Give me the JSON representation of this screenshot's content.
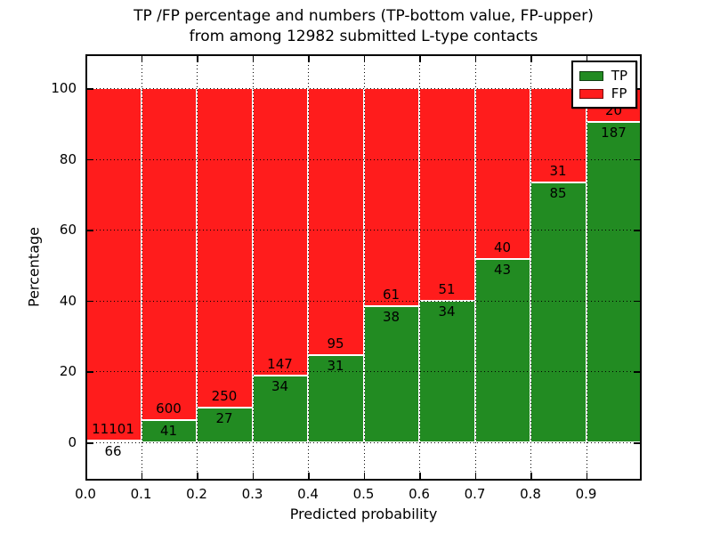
{
  "title": {
    "line1": "TP /FP percentage and numbers (TP-bottom value, FP-upper)",
    "line2": "from among 12982 submitted L-type contacts"
  },
  "axes": {
    "xlabel": "Predicted probability",
    "ylabel": "Percentage",
    "xtick_labels": [
      "0.0",
      "0.1",
      "0.2",
      "0.3",
      "0.4",
      "0.5",
      "0.6",
      "0.7",
      "0.8",
      "0.9"
    ],
    "ytick_values": [
      0,
      20,
      40,
      60,
      80,
      100
    ],
    "xlim": [
      0.0,
      1.0
    ],
    "ylim": [
      -11,
      110
    ],
    "grid_style": "dotted"
  },
  "legend": {
    "position": "upper-right",
    "items": [
      {
        "label": "TP",
        "color": "#228b22"
      },
      {
        "label": "FP",
        "color": "#ff1c1c"
      }
    ]
  },
  "chart_data": {
    "type": "bar",
    "subtype": "stacked-100-percent",
    "title": "TP /FP percentage and numbers (TP-bottom value, FP-upper) from among 12982 submitted L-type contacts",
    "xlabel": "Predicted probability",
    "ylabel": "Percentage",
    "total_contacts": 12982,
    "bin_width": 0.1,
    "bin_starts": [
      0.0,
      0.1,
      0.2,
      0.3,
      0.4,
      0.5,
      0.6,
      0.7,
      0.8,
      0.9
    ],
    "categories": [
      "0.0-0.1",
      "0.1-0.2",
      "0.2-0.3",
      "0.3-0.4",
      "0.4-0.5",
      "0.5-0.6",
      "0.6-0.7",
      "0.7-0.8",
      "0.8-0.9",
      "0.9-1.0"
    ],
    "series": [
      {
        "name": "TP",
        "color": "#228b22",
        "counts": [
          66,
          41,
          27,
          34,
          31,
          38,
          34,
          43,
          85,
          187
        ]
      },
      {
        "name": "FP",
        "color": "#ff1c1c",
        "counts": [
          11101,
          600,
          250,
          147,
          95,
          61,
          51,
          40,
          31,
          20
        ]
      }
    ]
  }
}
